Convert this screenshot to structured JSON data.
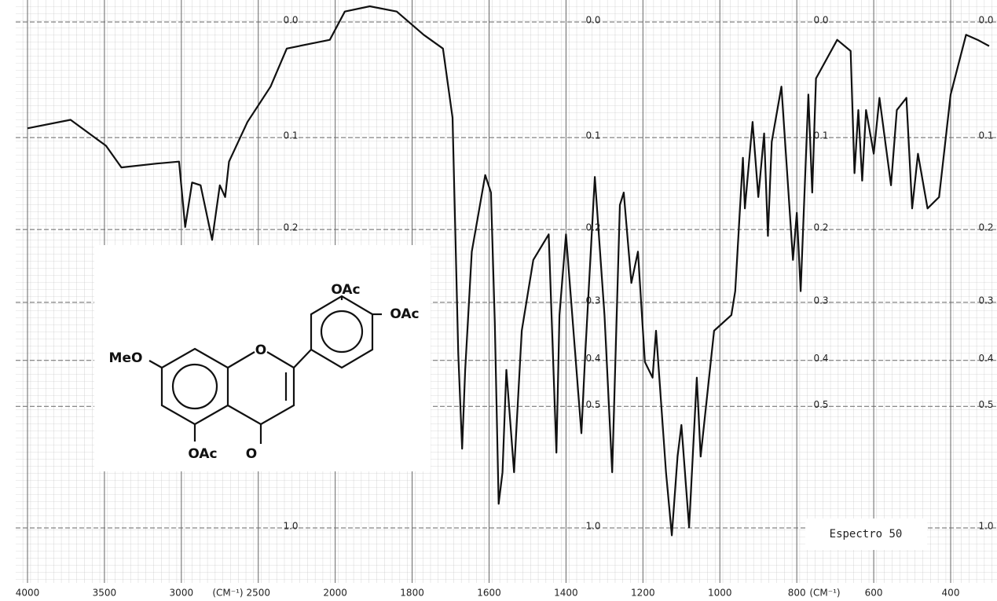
{
  "chart_data": {
    "type": "line",
    "x": [
      4000,
      3720,
      3490,
      3390,
      3160,
      3015,
      2975,
      2930,
      2875,
      2800,
      2750,
      2715,
      2690,
      2570,
      2420,
      2315,
      2035,
      1975,
      1910,
      1840,
      1770,
      1720,
      1695,
      1680,
      1670,
      1662,
      1645,
      1610,
      1595,
      1585,
      1575,
      1565,
      1555,
      1535,
      1515,
      1485,
      1445,
      1425,
      1417,
      1400,
      1360,
      1350,
      1325,
      1300,
      1280,
      1260,
      1250,
      1230,
      1213,
      1195,
      1175,
      1166,
      1140,
      1125,
      1110,
      1100,
      1080,
      1060,
      1050,
      1015,
      970,
      960,
      940,
      935,
      915,
      900,
      885,
      875,
      865,
      840,
      810,
      800,
      790,
      770,
      760,
      750,
      695,
      660,
      650,
      640,
      630,
      620,
      600,
      585,
      555,
      540,
      515,
      500,
      485,
      460,
      430,
      400,
      360,
      330,
      300
    ],
    "values": [
      0.091,
      0.083,
      0.108,
      0.13,
      0.126,
      0.124,
      0.197,
      0.146,
      0.149,
      0.213,
      0.149,
      0.162,
      0.124,
      0.085,
      0.053,
      0.021,
      0.014,
      -0.008,
      -0.012,
      -0.008,
      0.01,
      0.021,
      0.081,
      0.388,
      0.618,
      0.419,
      0.228,
      0.138,
      0.157,
      0.333,
      0.845,
      0.701,
      0.419,
      0.701,
      0.346,
      0.239,
      0.206,
      0.631,
      0.32,
      0.206,
      0.571,
      0.388,
      0.14,
      0.32,
      0.701,
      0.171,
      0.157,
      0.271,
      0.228,
      0.403,
      0.435,
      0.346,
      0.701,
      1.061,
      0.644,
      0.548,
      0.996,
      0.435,
      0.644,
      0.346,
      0.32,
      0.283,
      0.12,
      0.175,
      0.085,
      0.162,
      0.096,
      0.208,
      0.104,
      0.053,
      0.239,
      0.18,
      0.283,
      0.06,
      0.157,
      0.046,
      0.014,
      0.023,
      0.136,
      0.074,
      0.144,
      0.074,
      0.116,
      0.063,
      0.149,
      0.074,
      0.063,
      0.175,
      0.116,
      0.175,
      0.162,
      0.06,
      0.01,
      0.014,
      0.019
    ],
    "color": "#111111",
    "xlim": [
      4000,
      400
    ],
    "xticks": [
      4000,
      3500,
      3000,
      2500,
      2000,
      1800,
      1600,
      1400,
      1200,
      1000,
      800,
      600,
      400
    ],
    "xlabel": "(CM⁻¹)",
    "ylim": [
      0,
      1
    ],
    "yticks": [
      {
        "value": 0,
        "label": "0.0"
      },
      0.1,
      0.2,
      0.3,
      0.4,
      0.5,
      {
        "value": 1,
        "label": "1.0"
      }
    ],
    "grid": true,
    "annotation": "Espectro 50",
    "structure_labels": [
      "MeO",
      "O",
      "O",
      "OAc",
      "OAc",
      "OAc"
    ]
  }
}
